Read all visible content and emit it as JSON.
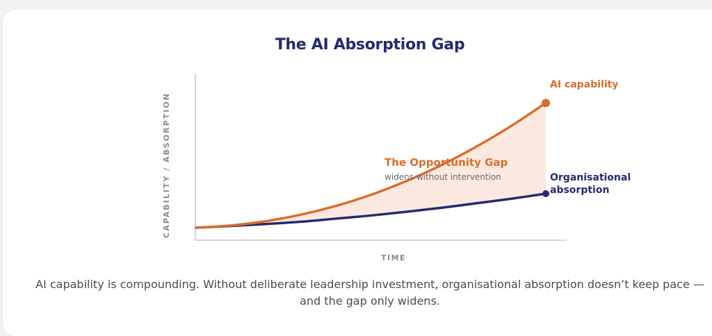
{
  "chart_data": {
    "type": "line",
    "title": "The AI Absorption Gap",
    "xlabel": "TIME",
    "ylabel": "CAPABILITY / ABSORPTION",
    "grid": false,
    "x": [
      0,
      1,
      2,
      3,
      4,
      5,
      6,
      7,
      8,
      9,
      10
    ],
    "series": [
      {
        "name": "AI capability",
        "color": "#d96d2b",
        "values": [
          0,
          0.8,
          2.3,
          4.6,
          7.7,
          11.6,
          16.4,
          22.0,
          28.5,
          35.8,
          44.0
        ]
      },
      {
        "name": "Organisational absorption",
        "color": "#252a72",
        "values": [
          0,
          0.6,
          1.3,
          2.1,
          3.2,
          4.3,
          5.6,
          7.0,
          8.6,
          10.2,
          12.0
        ]
      }
    ],
    "annotation": {
      "title": "The Opportunity Gap",
      "subtitle": "widens without intervention"
    },
    "ylim": [
      0,
      48
    ],
    "xlim": [
      0,
      10
    ]
  },
  "colors": {
    "title": "#232a6e",
    "capability": "#d96d2b",
    "absorption": "#252a72",
    "gap_fill": "#fbe7dc",
    "axis": "#c9c9d4",
    "axis_label": "#8a8a98"
  },
  "caption": "AI capability is compounding. Without deliberate leadership investment, organisational absorption doesn’t keep pace — and the gap only widens."
}
